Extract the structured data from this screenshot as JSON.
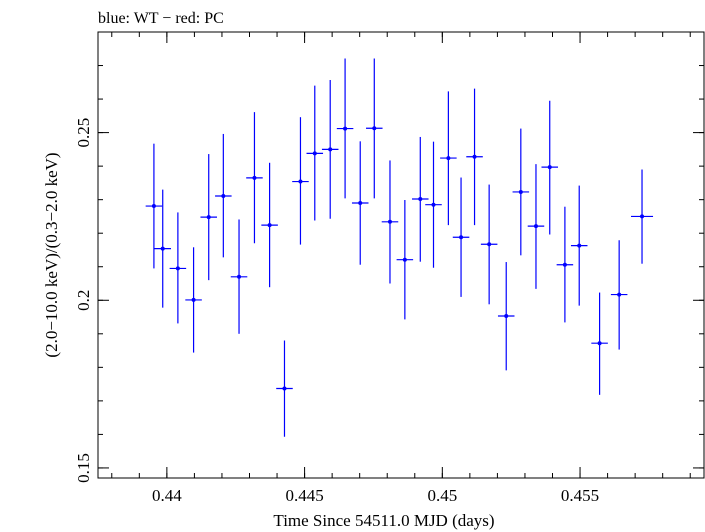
{
  "chart_data": {
    "type": "scatter",
    "title": "blue: WT − red: PC",
    "xlabel": "Time Since 54511.0 MJD (days)",
    "ylabel": "(2.0−10.0 keV)/(0.3−2.0 keV)",
    "xlim": [
      0.4375,
      0.4595
    ],
    "ylim": [
      0.147,
      0.28
    ],
    "x_ticks": [
      {
        "value": 0.44,
        "label": "0.44"
      },
      {
        "value": 0.445,
        "label": "0.445"
      },
      {
        "value": 0.45,
        "label": "0.45"
      },
      {
        "value": 0.455,
        "label": "0.455"
      }
    ],
    "y_ticks": [
      {
        "value": 0.15,
        "label": "0.15"
      },
      {
        "value": 0.2,
        "label": "0.2"
      },
      {
        "value": 0.25,
        "label": "0.25"
      }
    ],
    "x_minor_step": 0.001,
    "y_minor_step": 0.01,
    "color": "#0000ff",
    "series": [
      {
        "points": [
          {
            "x": 0.43953,
            "y": 0.2281,
            "xerr": 0.0003,
            "ylo": 0.2095,
            "yhi": 0.2467
          },
          {
            "x": 0.43985,
            "y": 0.2154,
            "xerr": 0.0003,
            "ylo": 0.1978,
            "yhi": 0.233
          },
          {
            "x": 0.4404,
            "y": 0.2095,
            "xerr": 0.0003,
            "ylo": 0.1931,
            "yhi": 0.2262
          },
          {
            "x": 0.44097,
            "y": 0.2001,
            "xerr": 0.0003,
            "ylo": 0.1844,
            "yhi": 0.2158
          },
          {
            "x": 0.44152,
            "y": 0.2248,
            "xerr": 0.0003,
            "ylo": 0.206,
            "yhi": 0.2436
          },
          {
            "x": 0.44205,
            "y": 0.2311,
            "xerr": 0.0003,
            "ylo": 0.2128,
            "yhi": 0.2496
          },
          {
            "x": 0.44262,
            "y": 0.207,
            "xerr": 0.0003,
            "ylo": 0.19,
            "yhi": 0.2241
          },
          {
            "x": 0.44318,
            "y": 0.2365,
            "xerr": 0.0003,
            "ylo": 0.217,
            "yhi": 0.2561
          },
          {
            "x": 0.44373,
            "y": 0.2224,
            "xerr": 0.0003,
            "ylo": 0.2039,
            "yhi": 0.241
          },
          {
            "x": 0.44427,
            "y": 0.1737,
            "xerr": 0.0003,
            "ylo": 0.1593,
            "yhi": 0.188
          },
          {
            "x": 0.44485,
            "y": 0.2354,
            "xerr": 0.0003,
            "ylo": 0.2166,
            "yhi": 0.2546
          },
          {
            "x": 0.44537,
            "y": 0.2438,
            "xerr": 0.0003,
            "ylo": 0.2238,
            "yhi": 0.264
          },
          {
            "x": 0.44593,
            "y": 0.245,
            "xerr": 0.0003,
            "ylo": 0.2243,
            "yhi": 0.2657
          },
          {
            "x": 0.44647,
            "y": 0.2512,
            "xerr": 0.0003,
            "ylo": 0.2304,
            "yhi": 0.2721
          },
          {
            "x": 0.44702,
            "y": 0.229,
            "xerr": 0.0003,
            "ylo": 0.2106,
            "yhi": 0.2474
          },
          {
            "x": 0.44753,
            "y": 0.2513,
            "xerr": 0.0003,
            "ylo": 0.2304,
            "yhi": 0.2721
          },
          {
            "x": 0.4481,
            "y": 0.2234,
            "xerr": 0.0003,
            "ylo": 0.205,
            "yhi": 0.2417
          },
          {
            "x": 0.44864,
            "y": 0.2121,
            "xerr": 0.0003,
            "ylo": 0.1943,
            "yhi": 0.2299
          },
          {
            "x": 0.4492,
            "y": 0.2302,
            "xerr": 0.0003,
            "ylo": 0.2115,
            "yhi": 0.2487
          },
          {
            "x": 0.44968,
            "y": 0.2285,
            "xerr": 0.0003,
            "ylo": 0.2097,
            "yhi": 0.2473
          },
          {
            "x": 0.45022,
            "y": 0.2424,
            "xerr": 0.0003,
            "ylo": 0.2224,
            "yhi": 0.2623
          },
          {
            "x": 0.45068,
            "y": 0.2188,
            "xerr": 0.0003,
            "ylo": 0.201,
            "yhi": 0.2366
          },
          {
            "x": 0.45117,
            "y": 0.2428,
            "xerr": 0.0003,
            "ylo": 0.2224,
            "yhi": 0.2631
          },
          {
            "x": 0.4517,
            "y": 0.2167,
            "xerr": 0.0003,
            "ylo": 0.1988,
            "yhi": 0.2345
          },
          {
            "x": 0.45232,
            "y": 0.1953,
            "xerr": 0.0003,
            "ylo": 0.1791,
            "yhi": 0.2114
          },
          {
            "x": 0.45285,
            "y": 0.2323,
            "xerr": 0.0003,
            "ylo": 0.2134,
            "yhi": 0.2512
          },
          {
            "x": 0.4534,
            "y": 0.2221,
            "xerr": 0.0003,
            "ylo": 0.2034,
            "yhi": 0.2406
          },
          {
            "x": 0.4539,
            "y": 0.2397,
            "xerr": 0.0003,
            "ylo": 0.2196,
            "yhi": 0.2595
          },
          {
            "x": 0.45445,
            "y": 0.2106,
            "xerr": 0.0003,
            "ylo": 0.1934,
            "yhi": 0.2279
          },
          {
            "x": 0.45497,
            "y": 0.2163,
            "xerr": 0.0003,
            "ylo": 0.1984,
            "yhi": 0.2342
          },
          {
            "x": 0.45571,
            "y": 0.1872,
            "xerr": 0.0003,
            "ylo": 0.1718,
            "yhi": 0.2023
          },
          {
            "x": 0.45642,
            "y": 0.2017,
            "xerr": 0.0003,
            "ylo": 0.1853,
            "yhi": 0.2179
          },
          {
            "x": 0.45725,
            "y": 0.225,
            "xerr": 0.0004,
            "ylo": 0.2109,
            "yhi": 0.239
          }
        ]
      }
    ]
  }
}
